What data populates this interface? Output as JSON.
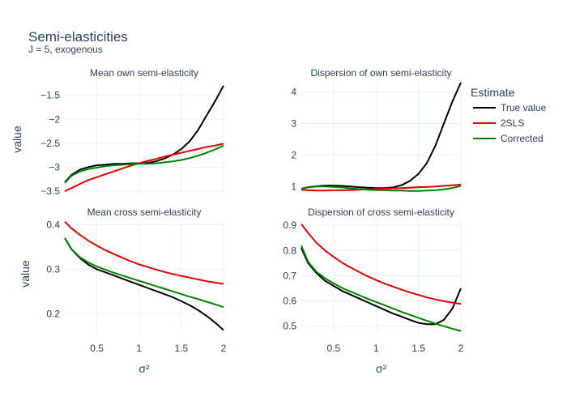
{
  "figure": {
    "title": "Semi-elasticities",
    "subtitle": "J = 5, exogenous",
    "xlabel": "σ²",
    "ylabel": "value"
  },
  "legend": {
    "title": "Estimate",
    "entries": [
      {
        "name": "True value",
        "color": "#000000"
      },
      {
        "name": "2SLS",
        "color": "#e00000"
      },
      {
        "name": "Corrected",
        "color": "#008000"
      }
    ],
    "placement": "right"
  },
  "colors": {
    "grid": "#ebf0f8",
    "text": "#2a3f5f"
  },
  "chart_data": [
    {
      "type": "line",
      "title": "Mean own semi-elasticity",
      "xlabel": "",
      "ylabel": "value",
      "xlim": [
        0.12,
        2.0
      ],
      "ylim": [
        -3.57,
        -1.2
      ],
      "xticks": [
        0.5,
        1,
        1.5,
        2
      ],
      "yticks": [
        -3.5,
        -3,
        -2.5,
        -2,
        -1.5
      ],
      "grid": true,
      "x": [
        0.12,
        0.2,
        0.3,
        0.4,
        0.5,
        0.6,
        0.7,
        0.8,
        0.9,
        1.0,
        1.1,
        1.2,
        1.3,
        1.4,
        1.5,
        1.6,
        1.7,
        1.8,
        1.9,
        2.0
      ],
      "series": [
        {
          "name": "True value",
          "color": "#000000",
          "values": [
            -3.32,
            -3.16,
            -3.05,
            -3.0,
            -2.96,
            -2.95,
            -2.93,
            -2.93,
            -2.92,
            -2.92,
            -2.91,
            -2.88,
            -2.82,
            -2.74,
            -2.62,
            -2.46,
            -2.22,
            -1.92,
            -1.62,
            -1.3
          ]
        },
        {
          "name": "2SLS",
          "color": "#e00000",
          "values": [
            -3.5,
            -3.44,
            -3.35,
            -3.27,
            -3.21,
            -3.15,
            -3.09,
            -3.03,
            -2.97,
            -2.92,
            -2.87,
            -2.83,
            -2.78,
            -2.74,
            -2.7,
            -2.66,
            -2.62,
            -2.58,
            -2.55,
            -2.51
          ]
        },
        {
          "name": "Corrected",
          "color": "#008000",
          "values": [
            -3.33,
            -3.18,
            -3.09,
            -3.04,
            -3.01,
            -2.98,
            -2.96,
            -2.95,
            -2.94,
            -2.93,
            -2.93,
            -2.92,
            -2.9,
            -2.88,
            -2.85,
            -2.81,
            -2.76,
            -2.7,
            -2.63,
            -2.55
          ]
        }
      ]
    },
    {
      "type": "line",
      "title": "Dispersion of own semi-elasticity",
      "xlabel": "",
      "ylabel": "",
      "xlim": [
        0.12,
        2.0
      ],
      "ylim": [
        0.75,
        4.35
      ],
      "xticks": [
        0.5,
        1,
        1.5,
        2
      ],
      "yticks": [
        1,
        2,
        3,
        4
      ],
      "grid": true,
      "x": [
        0.12,
        0.2,
        0.3,
        0.4,
        0.5,
        0.6,
        0.7,
        0.8,
        0.9,
        1.0,
        1.1,
        1.2,
        1.3,
        1.4,
        1.5,
        1.6,
        1.7,
        1.8,
        1.9,
        2.0
      ],
      "series": [
        {
          "name": "True value",
          "color": "#000000",
          "values": [
            0.93,
            0.98,
            1.01,
            1.03,
            1.03,
            1.02,
            1.0,
            0.98,
            0.96,
            0.95,
            0.95,
            0.97,
            1.04,
            1.18,
            1.4,
            1.75,
            2.3,
            3.0,
            3.7,
            4.3
          ]
        },
        {
          "name": "2SLS",
          "color": "#e00000",
          "values": [
            0.9,
            0.88,
            0.87,
            0.87,
            0.88,
            0.88,
            0.89,
            0.9,
            0.91,
            0.92,
            0.93,
            0.94,
            0.95,
            0.96,
            0.98,
            0.99,
            1.0,
            1.02,
            1.04,
            1.06
          ]
        },
        {
          "name": "Corrected",
          "color": "#008000",
          "values": [
            0.93,
            0.97,
            1.0,
            1.0,
            0.99,
            0.97,
            0.94,
            0.92,
            0.9,
            0.89,
            0.88,
            0.87,
            0.87,
            0.86,
            0.86,
            0.87,
            0.88,
            0.91,
            0.95,
            1.02
          ]
        }
      ]
    },
    {
      "type": "line",
      "title": "Mean cross semi-elasticity",
      "xlabel": "σ²",
      "ylabel": "value",
      "xlim": [
        0.12,
        2.0
      ],
      "ylim": [
        0.155,
        0.41
      ],
      "xticks": [
        0.5,
        1,
        1.5,
        2
      ],
      "yticks": [
        0.2,
        0.3,
        0.4
      ],
      "grid": true,
      "x": [
        0.12,
        0.2,
        0.3,
        0.4,
        0.5,
        0.6,
        0.7,
        0.8,
        0.9,
        1.0,
        1.1,
        1.2,
        1.3,
        1.4,
        1.5,
        1.6,
        1.7,
        1.8,
        1.9,
        2.0
      ],
      "series": [
        {
          "name": "True value",
          "color": "#000000",
          "values": [
            0.37,
            0.345,
            0.325,
            0.31,
            0.3,
            0.293,
            0.286,
            0.279,
            0.272,
            0.265,
            0.258,
            0.251,
            0.244,
            0.237,
            0.228,
            0.219,
            0.208,
            0.195,
            0.18,
            0.163
          ]
        },
        {
          "name": "2SLS",
          "color": "#e00000",
          "values": [
            0.407,
            0.392,
            0.377,
            0.364,
            0.353,
            0.343,
            0.334,
            0.326,
            0.318,
            0.311,
            0.305,
            0.299,
            0.294,
            0.289,
            0.285,
            0.281,
            0.277,
            0.273,
            0.27,
            0.267
          ]
        },
        {
          "name": "Corrected",
          "color": "#008000",
          "values": [
            0.37,
            0.345,
            0.327,
            0.315,
            0.306,
            0.299,
            0.292,
            0.286,
            0.28,
            0.274,
            0.268,
            0.262,
            0.256,
            0.25,
            0.244,
            0.238,
            0.233,
            0.227,
            0.221,
            0.215
          ]
        }
      ]
    },
    {
      "type": "line",
      "title": "Dispersion of cross semi-elasticity",
      "xlabel": "σ²",
      "ylabel": "",
      "xlim": [
        0.12,
        2.0
      ],
      "ylim": [
        0.47,
        0.92
      ],
      "xticks": [
        0.5,
        1,
        1.5,
        2
      ],
      "yticks": [
        0.5,
        0.6,
        0.7,
        0.8,
        0.9
      ],
      "grid": true,
      "x": [
        0.12,
        0.2,
        0.3,
        0.4,
        0.5,
        0.6,
        0.7,
        0.8,
        0.9,
        1.0,
        1.1,
        1.2,
        1.3,
        1.4,
        1.5,
        1.6,
        1.7,
        1.8,
        1.9,
        2.0
      ],
      "series": [
        {
          "name": "True value",
          "color": "#000000",
          "values": [
            0.81,
            0.75,
            0.71,
            0.68,
            0.66,
            0.64,
            0.625,
            0.61,
            0.595,
            0.58,
            0.565,
            0.55,
            0.538,
            0.525,
            0.513,
            0.508,
            0.508,
            0.525,
            0.57,
            0.65
          ]
        },
        {
          "name": "2SLS",
          "color": "#e00000",
          "values": [
            0.905,
            0.87,
            0.83,
            0.8,
            0.775,
            0.752,
            0.733,
            0.715,
            0.698,
            0.683,
            0.669,
            0.657,
            0.645,
            0.634,
            0.624,
            0.614,
            0.606,
            0.599,
            0.593,
            0.588
          ]
        },
        {
          "name": "Corrected",
          "color": "#008000",
          "values": [
            0.82,
            0.755,
            0.715,
            0.69,
            0.67,
            0.652,
            0.637,
            0.623,
            0.609,
            0.596,
            0.583,
            0.57,
            0.557,
            0.545,
            0.533,
            0.521,
            0.51,
            0.5,
            0.49,
            0.481
          ]
        }
      ]
    }
  ]
}
